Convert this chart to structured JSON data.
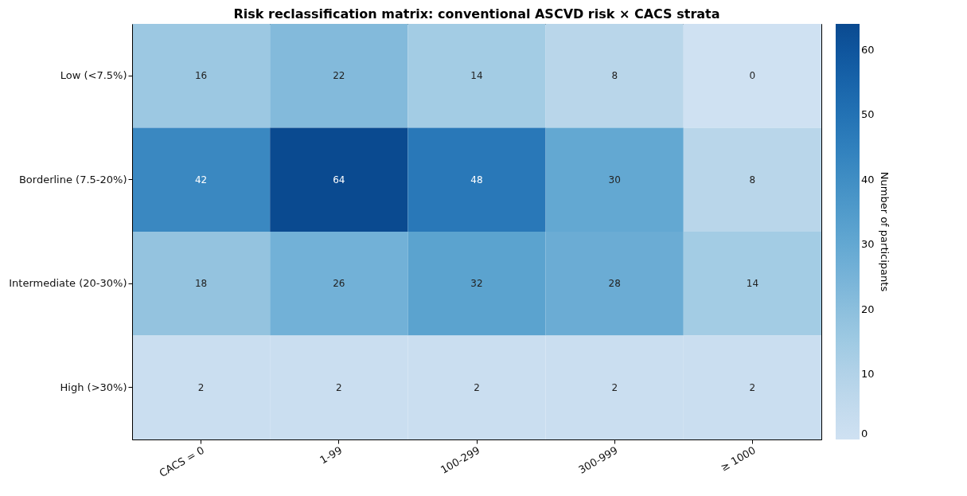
{
  "chart_data": {
    "type": "heatmap",
    "title": "Risk reclassification matrix: conventional ASCVD risk × CACS strata",
    "categories": [
      "CACS = 0",
      "1-99",
      "100-299",
      "300-999",
      "≥ 1000"
    ],
    "y_categories": [
      "Low (<7.5%)",
      "Borderline (7.5-20%)",
      "Intermediate (20-30%)",
      "High (>30%)"
    ],
    "cells": [
      [
        16,
        22,
        14,
        8,
        0
      ],
      [
        42,
        64,
        48,
        30,
        8
      ],
      [
        18,
        26,
        32,
        28,
        14
      ],
      [
        2,
        2,
        2,
        2,
        2
      ]
    ],
    "clabel": "Number of participants",
    "clim": [
      0,
      64
    ],
    "cticks": [
      0,
      10,
      20,
      30,
      40,
      50,
      60
    ],
    "data_labels": true
  }
}
